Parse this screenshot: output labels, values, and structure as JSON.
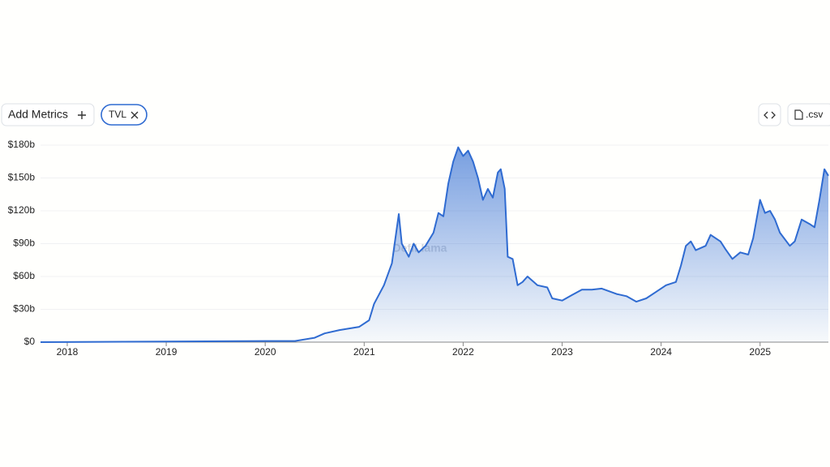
{
  "toolbar": {
    "add_metrics": "Add Metrics",
    "csv": ".csv"
  },
  "watermark": "DefiLlama",
  "chart_data": {
    "type": "area",
    "x": [
      2017.73,
      2019,
      2020,
      2020.3,
      2020.5,
      2020.6,
      2020.75,
      2020.95,
      2021.05,
      2021.1,
      2021.2,
      2021.28,
      2021.35,
      2021.38,
      2021.45,
      2021.5,
      2021.55,
      2021.62,
      2021.7,
      2021.75,
      2021.8,
      2021.85,
      2021.9,
      2021.95,
      2022.0,
      2022.05,
      2022.1,
      2022.15,
      2022.2,
      2022.25,
      2022.3,
      2022.35,
      2022.38,
      2022.42,
      2022.45,
      2022.5,
      2022.55,
      2022.6,
      2022.65,
      2022.75,
      2022.85,
      2022.9,
      2023.0,
      2023.1,
      2023.2,
      2023.3,
      2023.4,
      2023.55,
      2023.65,
      2023.75,
      2023.85,
      2023.95,
      2024.05,
      2024.15,
      2024.2,
      2024.25,
      2024.3,
      2024.35,
      2024.45,
      2024.5,
      2024.6,
      2024.65,
      2024.72,
      2024.8,
      2024.88,
      2024.93,
      2025.0,
      2025.05,
      2025.1,
      2025.15,
      2025.2,
      2025.3,
      2025.35,
      2025.42,
      2025.5,
      2025.55,
      2025.6,
      2025.65,
      2025.69
    ],
    "series": [
      {
        "name": "TVL",
        "color": "#2f6bd1",
        "values": [
          0,
          0.5,
          1,
          1,
          4,
          8,
          11,
          14,
          20,
          35,
          52,
          72,
          117,
          90,
          78,
          90,
          82,
          88,
          100,
          118,
          115,
          145,
          165,
          178,
          170,
          175,
          165,
          150,
          130,
          140,
          132,
          155,
          158,
          140,
          78,
          76,
          52,
          55,
          60,
          52,
          50,
          40,
          38,
          43,
          48,
          48,
          49,
          44,
          42,
          37,
          40,
          46,
          52,
          55,
          70,
          88,
          92,
          84,
          88,
          98,
          92,
          85,
          76,
          82,
          80,
          95,
          130,
          118,
          120,
          112,
          100,
          88,
          92,
          112,
          108,
          105,
          130,
          158,
          152
        ]
      }
    ],
    "xlim": [
      2017.73,
      2025.69
    ],
    "xticks": [
      2018,
      2019,
      2020,
      2021,
      2022,
      2023,
      2024,
      2025
    ],
    "ylim": [
      0,
      180
    ],
    "yticks": [
      {
        "value": 0,
        "label": "$0"
      },
      {
        "value": 30,
        "label": "$30b"
      },
      {
        "value": 60,
        "label": "$60b"
      },
      {
        "value": 90,
        "label": "$90b"
      },
      {
        "value": 120,
        "label": "$120b"
      },
      {
        "value": 150,
        "label": "$150b"
      },
      {
        "value": 180,
        "label": "$180b"
      }
    ],
    "grid": true
  }
}
